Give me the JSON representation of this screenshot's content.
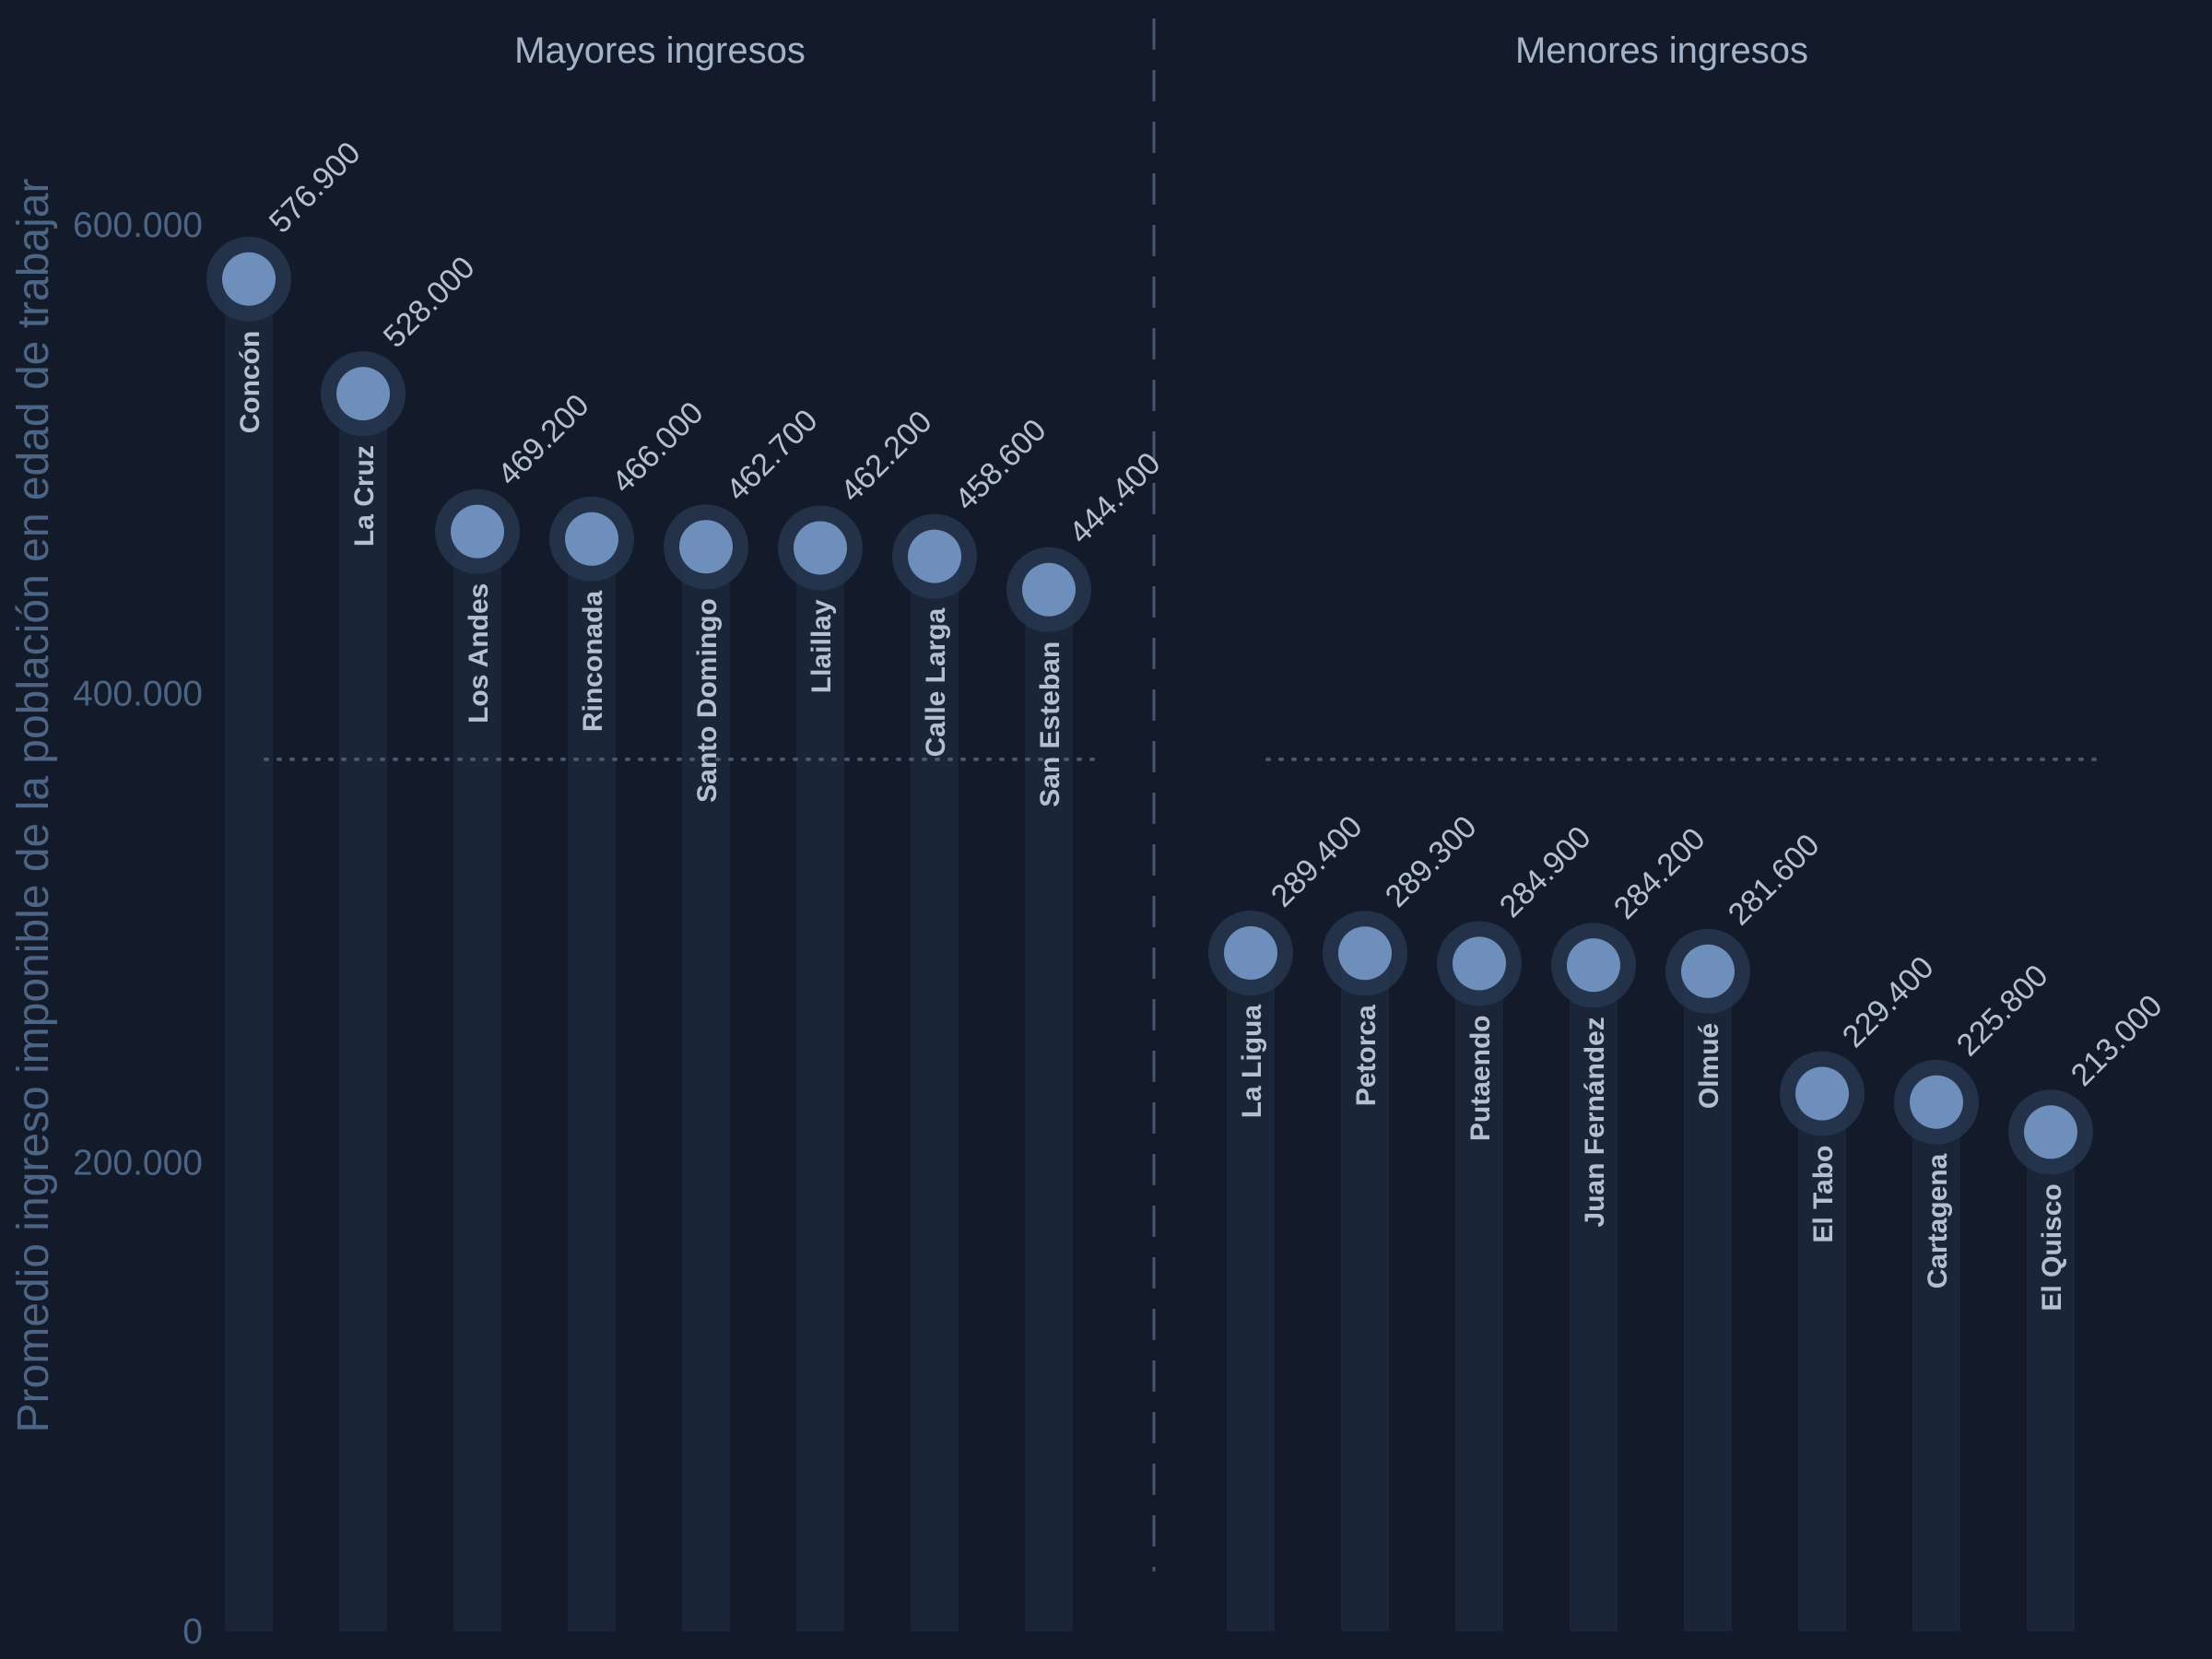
{
  "chart_data": {
    "type": "lollipop",
    "ylabel": "Promedio ingreso imponible de la población en edad de trabajar",
    "ylim": [
      0,
      600000
    ],
    "yticks": [
      0,
      200000,
      400000,
      600000
    ],
    "ytick_labels": [
      "0",
      "200.000",
      "400.000",
      "600.000"
    ],
    "reference_value": 372000,
    "groups": [
      {
        "name": "Mayores ingresos",
        "categories": [
          "Concón",
          "La Cruz",
          "Los Andes",
          "Rinconada",
          "Santo Domingo",
          "Llaillay",
          "Calle Larga",
          "San Esteban"
        ],
        "values": [
          576900,
          528000,
          469200,
          466000,
          462700,
          462200,
          458600,
          444400
        ],
        "value_labels": [
          "576.900",
          "528.000",
          "469.200",
          "466.000",
          "462.700",
          "462.200",
          "458.600",
          "444.400"
        ]
      },
      {
        "name": "Menores ingresos",
        "categories": [
          "La Ligua",
          "Petorca",
          "Putaendo",
          "Juan Fernández",
          "Olmué",
          "El Tabo",
          "Cartagena",
          "El Quisco"
        ],
        "values": [
          289400,
          289300,
          284900,
          284200,
          281600,
          229400,
          225800,
          213000
        ],
        "value_labels": [
          "289.400",
          "289.300",
          "284.900",
          "284.200",
          "281.600",
          "229.400",
          "225.800",
          "213.000"
        ]
      }
    ],
    "grid": false,
    "colors": {
      "background": "#131a2a",
      "column": "#1b2538",
      "dot": "#6e8fbb",
      "halo": "#2a3954",
      "reference": "#4a566a",
      "divider": "#46566e"
    }
  }
}
